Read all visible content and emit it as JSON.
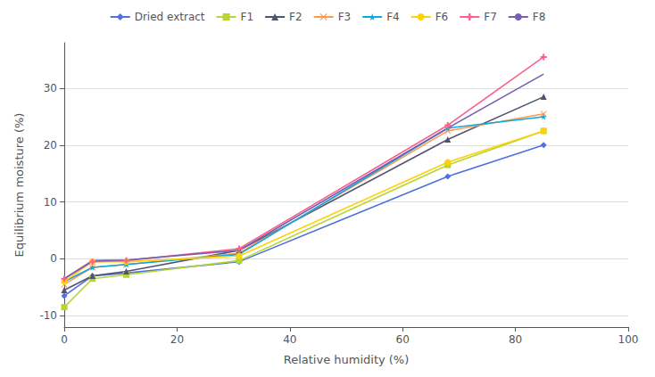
{
  "chart_data": {
    "type": "line",
    "xlabel": "Relative humidity (%)",
    "ylabel": "Equilibrium moisture (%)",
    "x": [
      0,
      5,
      11,
      31,
      68,
      85
    ],
    "series": [
      {
        "name": "Dried extract",
        "marker": "diamond",
        "values": [
          -6.5,
          -3.0,
          -2.5,
          -0.5,
          14.5,
          20.0
        ]
      },
      {
        "name": "F1",
        "marker": "square",
        "values": [
          -8.5,
          -3.5,
          -2.8,
          -0.3,
          16.5,
          22.5
        ]
      },
      {
        "name": "F2",
        "marker": "triangle",
        "values": [
          -5.5,
          -3.0,
          -2.2,
          1.5,
          21.0,
          28.5
        ]
      },
      {
        "name": "F3",
        "marker": "x",
        "values": [
          -4.5,
          -1.5,
          -1.0,
          1.0,
          22.5,
          25.5
        ]
      },
      {
        "name": "F4",
        "marker": "star",
        "values": [
          -4.0,
          -1.5,
          -1.0,
          0.8,
          23.0,
          25.0
        ]
      },
      {
        "name": "F6",
        "marker": "circle",
        "values": [
          -4.0,
          -0.5,
          -0.5,
          0.5,
          17.0,
          22.5
        ]
      },
      {
        "name": "F7",
        "marker": "plus",
        "values": [
          -3.5,
          -0.5,
          -0.3,
          1.8,
          23.5,
          35.5
        ]
      },
      {
        "name": "F8",
        "marker": "none",
        "values": [
          -3.5,
          -0.3,
          -0.2,
          1.5,
          23.0,
          32.5
        ]
      }
    ],
    "xlim": [
      0,
      100
    ],
    "ylim": [
      -12,
      38
    ],
    "xticks": [
      0,
      20,
      40,
      60,
      80,
      100
    ],
    "yticks": [
      -10,
      0,
      10,
      20,
      30
    ],
    "grid": true,
    "legend": "top"
  }
}
